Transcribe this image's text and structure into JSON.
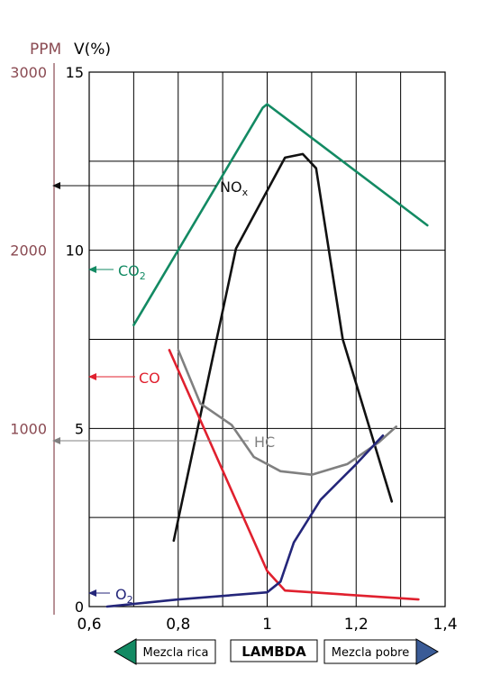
{
  "chart_data": {
    "type": "line",
    "axis_titles": {
      "ppm": "PPM",
      "volume": "V(%)",
      "x": "LAMBDA"
    },
    "x_ticks": [
      "0,6",
      "0,8",
      "1",
      "1,2",
      "1,4"
    ],
    "volume_ticks": [
      "0",
      "5",
      "10",
      "15"
    ],
    "ppm_ticks": [
      "1000",
      "2000",
      "3000"
    ],
    "xlim": [
      0.6,
      1.4
    ],
    "volume_ylim": [
      0,
      15
    ],
    "ppm_ylim": [
      0,
      3000
    ],
    "grid": true,
    "series": [
      {
        "name": "CO₂",
        "label_main": "CO",
        "label_sub": "2",
        "color": "#138a63",
        "axis": "volume",
        "x": [
          0.7,
          0.99,
          1.0,
          1.36
        ],
        "y": [
          7.9,
          14.0,
          14.1,
          10.7
        ]
      },
      {
        "name": "NOₓ",
        "label_main": "NO",
        "label_sub": "x",
        "color": "#111111",
        "axis": "ppm",
        "x": [
          0.79,
          0.93,
          1.04,
          1.08,
          1.11,
          1.17,
          1.28
        ],
        "y": [
          370,
          2010,
          2520,
          2540,
          2460,
          1500,
          590
        ]
      },
      {
        "name": "CO",
        "label_main": "CO",
        "label_sub": "",
        "color": "#e0202e",
        "axis": "volume",
        "x": [
          0.78,
          1.0,
          1.04,
          1.34
        ],
        "y": [
          7.2,
          1.0,
          0.45,
          0.2
        ]
      },
      {
        "name": "HC",
        "label_main": "HC",
        "label_sub": "",
        "color": "#808080",
        "axis": "ppm",
        "x": [
          0.8,
          0.85,
          0.92,
          0.97,
          1.03,
          1.1,
          1.18,
          1.25,
          1.29
        ],
        "y": [
          1440,
          1140,
          1020,
          840,
          760,
          740,
          800,
          920,
          1010
        ]
      },
      {
        "name": "O₂",
        "label_main": "O",
        "label_sub": "2",
        "color": "#24267a",
        "axis": "volume",
        "x": [
          0.64,
          0.8,
          1.0,
          1.03,
          1.06,
          1.12,
          1.2,
          1.26
        ],
        "y": [
          0.0,
          0.2,
          0.4,
          0.7,
          1.8,
          3.0,
          4.0,
          4.8
        ]
      }
    ],
    "arrow_labels": {
      "left": "Mezcla rica",
      "right": "Mezcla pobre"
    },
    "colors": {
      "ppm_axis": "#8a4a52",
      "arrow_left": "#138a63",
      "arrow_right": "#3a5b96"
    }
  }
}
